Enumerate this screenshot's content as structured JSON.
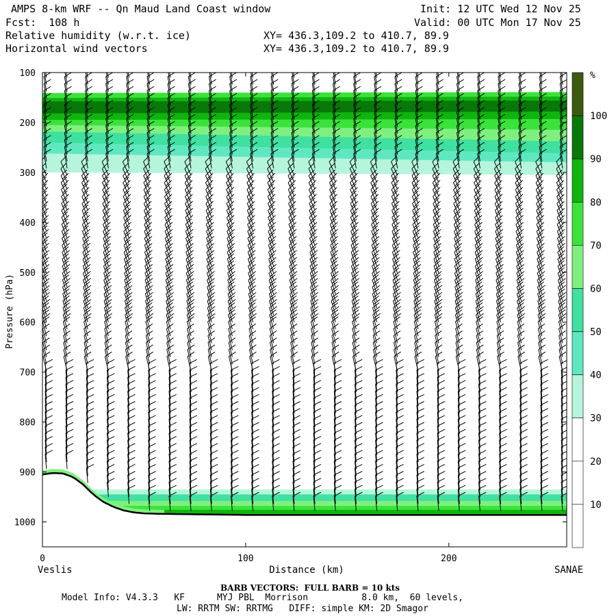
{
  "header": {
    "left1": "AMPS 8-km WRF -- Qn Maud Land Coast window",
    "left2": "Fcst:  108 h",
    "left3": "Relative humidity (w.r.t. ice)",
    "left4": "Horizontal wind vectors",
    "right1": "Init: 12 UTC Wed 12 Nov 25",
    "right2": "Valid: 00 UTC Mon 17 Nov 25",
    "xy1": "XY= 436.3,109.2 to 410.7, 89.9",
    "xy2": "XY= 436.3,109.2 to 410.7, 89.9"
  },
  "footer": {
    "barb": "BARB VECTORS:  FULL BARB = 10 kts",
    "model_info": "Model Info: V4.3.3   KF      MYJ PBL  Morrison          8.0 km,  60 levels,",
    "physics": "LW: RRTM SW: RRTMG   DIFF: simple KM: 2D Smagor"
  },
  "chart_data": {
    "type": "cross-section",
    "title": "Relative humidity (w.r.t. ice) and horizontal wind vectors",
    "xlabel": "Distance (km)",
    "ylabel": "Pressure (hPa)",
    "x_range": [
      0,
      258
    ],
    "y_range": [
      100,
      1050
    ],
    "y_inverted": true,
    "x_ticks": [
      0,
      100,
      200
    ],
    "y_ticks": [
      100,
      200,
      300,
      400,
      500,
      600,
      700,
      800,
      900,
      1000
    ],
    "left_endpoint": "Veslis",
    "right_endpoint": "SANAE",
    "colorbar": {
      "unit": "%",
      "levels": [
        10,
        20,
        30,
        40,
        50,
        60,
        70,
        80,
        90,
        100
      ],
      "colors": [
        "#ffffff",
        "#ffffff",
        "#ffffff",
        "#b4f5dc",
        "#5fe8c0",
        "#3fe0a0",
        "#7ff07f",
        "#3ce23c",
        "#0fb40f",
        "#087808",
        "#3c5a10"
      ]
    },
    "rh_layers": [
      {
        "name": "upper moist layer",
        "rh_min": 30,
        "rh_max": 100,
        "top_hpa": [
          140,
          138
        ],
        "core_hpa": [
          170,
          168
        ],
        "base_hpa": [
          300,
          305
        ]
      },
      {
        "name": "boundary layer",
        "rh_min": 30,
        "rh_max": 90,
        "top_hpa": [
          935,
          935
        ],
        "base_hpa": [
          985,
          985
        ]
      }
    ],
    "terrain_surface": {
      "x_km": [
        0,
        5,
        10,
        15,
        20,
        25,
        30,
        35,
        40,
        45,
        50,
        60,
        80,
        100,
        150,
        200,
        258
      ],
      "p_hpa": [
        905,
        902,
        903,
        910,
        925,
        945,
        960,
        970,
        977,
        981,
        983,
        984,
        985,
        986,
        986,
        986,
        986
      ]
    },
    "barb_note": "FULL BARB = 10 kts"
  }
}
